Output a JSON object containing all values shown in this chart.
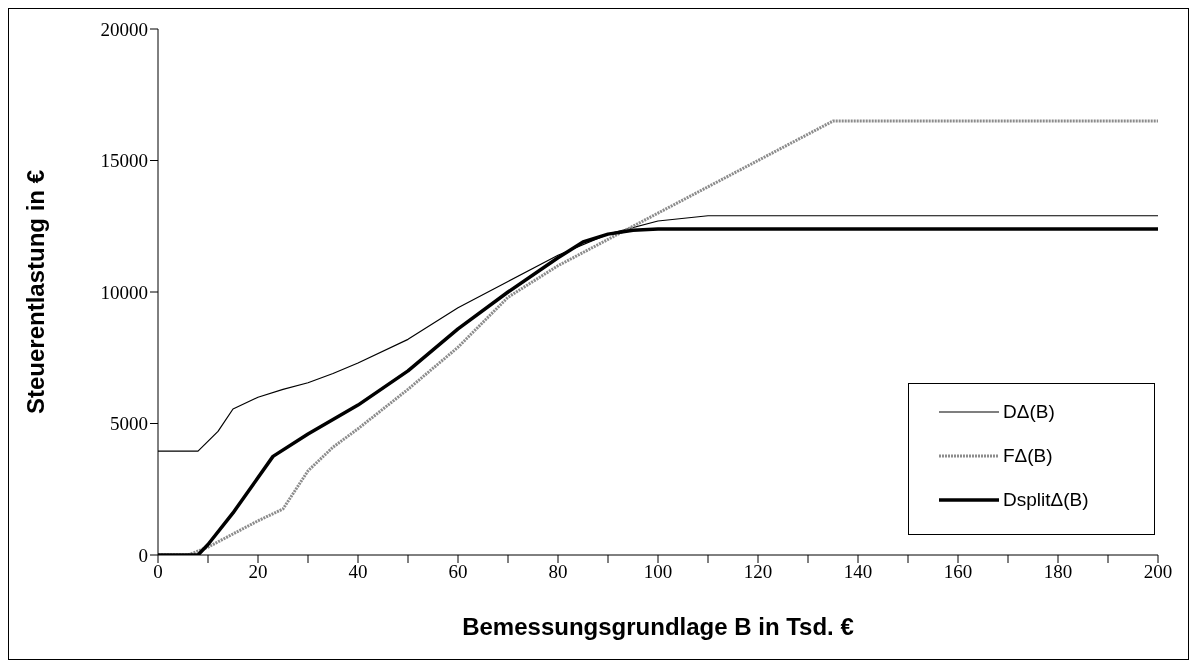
{
  "chart_data": {
    "type": "line",
    "xlabel": "Bemessungsgrundlage B in Tsd. €",
    "ylabel": "Steuerentlastung in €",
    "xlim": [
      0,
      200
    ],
    "ylim": [
      0,
      20000
    ],
    "xticks": [
      0,
      {
        "value": 10,
        "label": null
      },
      20,
      {
        "value": 30,
        "label": null
      },
      40,
      {
        "value": 50,
        "label": null
      },
      60,
      {
        "value": 70,
        "label": null
      },
      80,
      {
        "value": 90,
        "label": null
      },
      100,
      {
        "value": 110,
        "label": null
      },
      120,
      {
        "value": 130,
        "label": null
      },
      140,
      {
        "value": 150,
        "label": null
      },
      160,
      {
        "value": 170,
        "label": null
      },
      180,
      {
        "value": 190,
        "label": null
      },
      200
    ],
    "yticks": [
      0,
      5000,
      10000,
      15000,
      20000
    ],
    "grid": false,
    "legend": "bottom right",
    "marker": "none",
    "series": [
      {
        "name": "DΔ(B)",
        "color": "#000000",
        "line_style": "solid",
        "x": [
          0,
          8,
          12,
          15,
          20,
          25,
          30,
          35,
          40,
          50,
          60,
          70,
          80,
          90,
          100,
          110,
          120,
          200
        ],
        "values": [
          3950,
          3950,
          4700,
          5550,
          6000,
          6300,
          6550,
          6900,
          7300,
          8200,
          9400,
          10400,
          11400,
          12200,
          12700,
          12900,
          12900,
          12900
        ]
      },
      {
        "name": "FΔ(B)",
        "color": "#8c8c8c",
        "line_style": "dotted",
        "x": [
          0,
          6,
          10,
          15,
          20,
          25,
          30,
          35,
          40,
          50,
          60,
          70,
          80,
          90,
          100,
          110,
          120,
          135,
          200
        ],
        "values": [
          0,
          0,
          300,
          800,
          1300,
          1750,
          3200,
          4100,
          4800,
          6300,
          7900,
          9800,
          11000,
          12000,
          13000,
          14000,
          15000,
          16500,
          16500
        ]
      },
      {
        "name": "DsplitΔ(B)",
        "color": "#000000",
        "line_style": "solid",
        "x": [
          0,
          8,
          10,
          15,
          23,
          30,
          40,
          50,
          60,
          70,
          80,
          85,
          90,
          95,
          100,
          200
        ],
        "values": [
          0,
          0,
          400,
          1600,
          3750,
          4600,
          5700,
          7000,
          8600,
          10000,
          11300,
          11900,
          12200,
          12350,
          12400,
          12400
        ]
      }
    ]
  }
}
